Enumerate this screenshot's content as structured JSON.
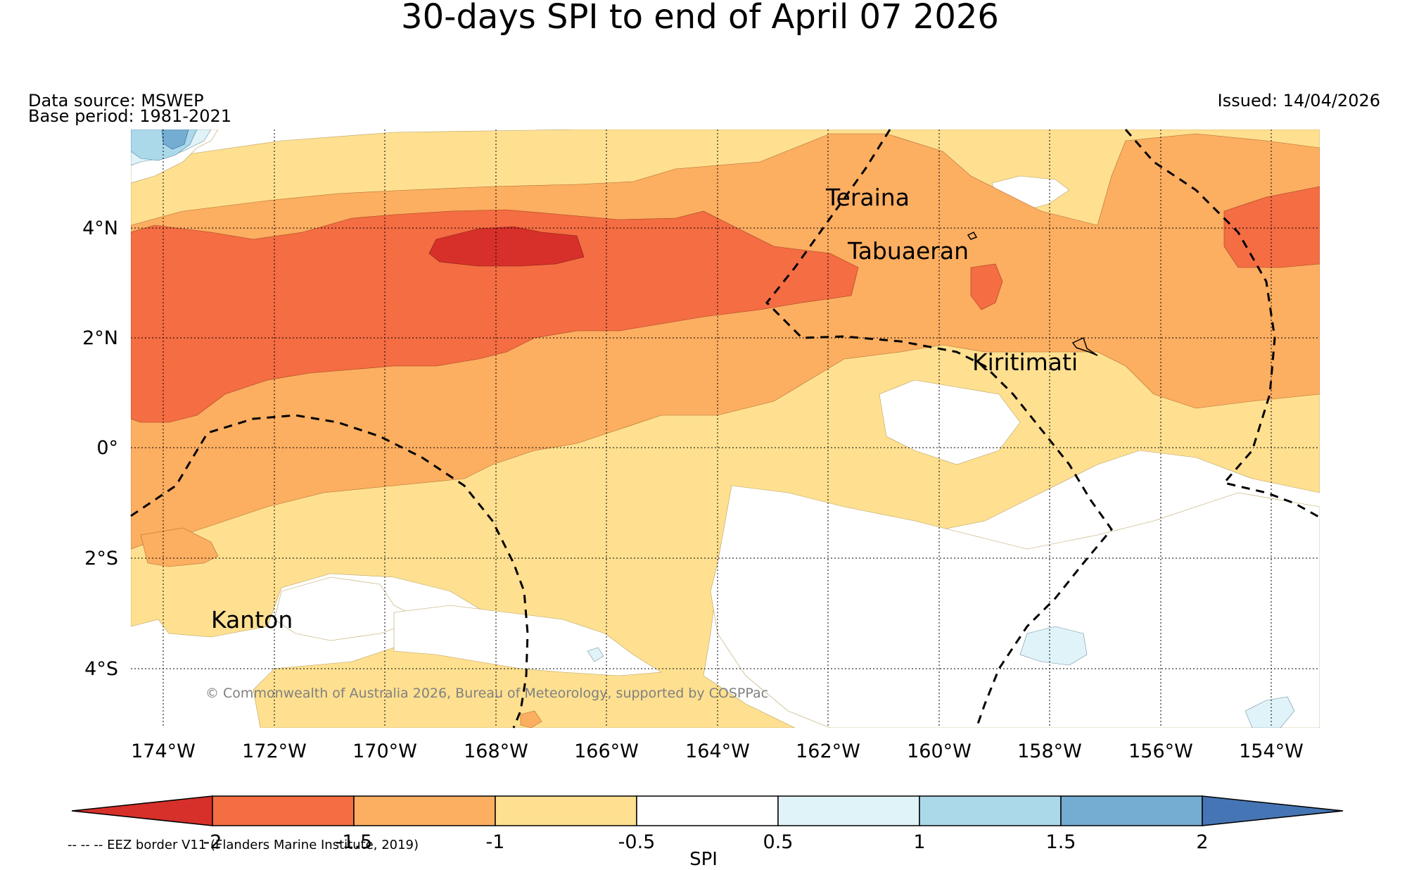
{
  "title": "30-days SPI to end of April 07 2026",
  "source": "Data source: MSWEP",
  "base_period": "Base period: 1981-2021",
  "issued": "Issued: 14/04/2026",
  "copyright": "© Commonwealth of Australia 2026, Bureau of Meteorology, supported by COSPPac",
  "eez_note": "-- -- -- EEZ border V11 (Flanders Marine Institute, 2019)",
  "colorbar_title": "SPI",
  "lon_labels": [
    "174°W",
    "172°W",
    "170°W",
    "168°W",
    "166°W",
    "164°W",
    "162°W",
    "160°W",
    "158°W",
    "156°W",
    "154°W"
  ],
  "lat_labels": [
    "4°N",
    "2°N",
    "0°",
    "2°S",
    "4°S"
  ],
  "places": {
    "teraina": "Teraina",
    "tabuaeran": "Tabuaeran",
    "kiritimati": "Kiritimati",
    "kanton": "Kanton"
  },
  "colorbar": {
    "ticks": [
      "-2",
      "-1.5",
      "-1",
      "-0.5",
      "0.5",
      "1",
      "1.5",
      "2"
    ],
    "colors": {
      "below_-2": "#d7302a",
      "-2_-1.5": "#f46d43",
      "-1.5_-1": "#fcae61",
      "-1_-0.5": "#fee090",
      "-0.5_0.5": "#ffffff",
      "0.5_1": "#e0f3f8",
      "1_1.5": "#abd9e9",
      "1.5_2": "#74add1",
      "above_2": "#4575b4"
    }
  }
}
